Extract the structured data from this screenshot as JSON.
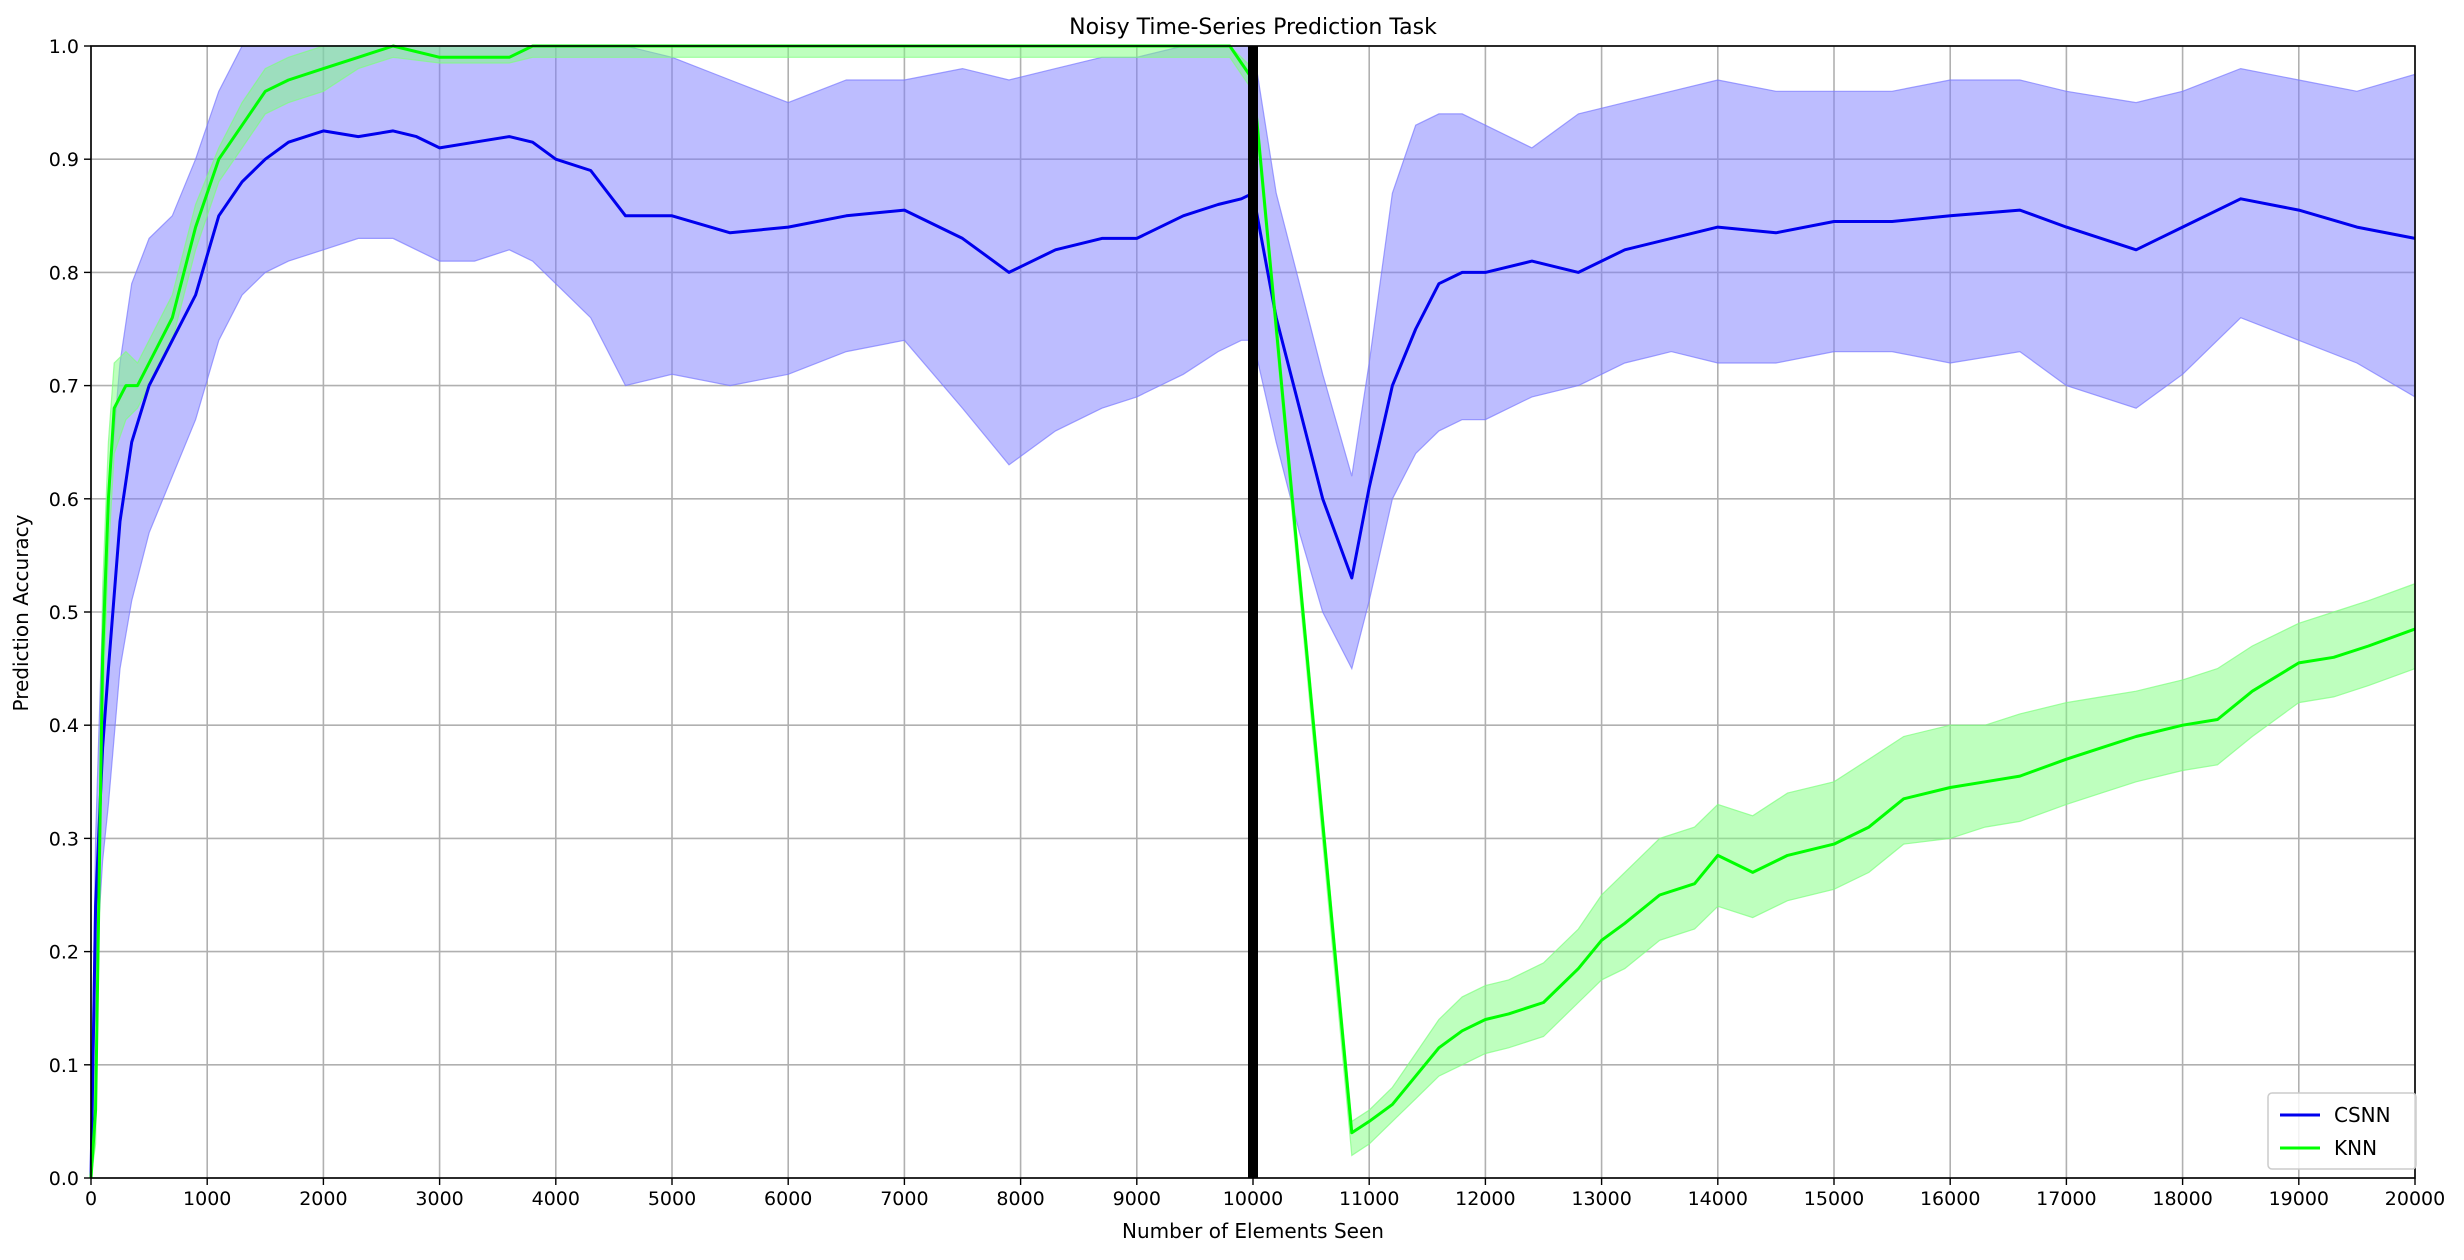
{
  "chart_data": {
    "type": "line",
    "title": "Noisy Time-Series Prediction Task",
    "xlabel": "Number of Elements Seen",
    "ylabel": "Prediction Accuracy",
    "xlim": [
      0,
      20000
    ],
    "ylim": [
      0,
      1.0
    ],
    "xticks": [
      0,
      1000,
      2000,
      3000,
      4000,
      5000,
      6000,
      7000,
      8000,
      9000,
      10000,
      11000,
      12000,
      13000,
      14000,
      15000,
      16000,
      17000,
      18000,
      19000,
      20000
    ],
    "yticks": [
      0.0,
      0.1,
      0.2,
      0.3,
      0.4,
      0.5,
      0.6,
      0.7,
      0.8,
      0.9,
      1.0
    ],
    "grid": true,
    "legend_position": "lower-right",
    "vline_x": 10000,
    "vline_color": "#000000",
    "series": [
      {
        "name": "CSNN",
        "color": "#0000ee",
        "band_color": "#7b7bff",
        "x": [
          0,
          40,
          100,
          150,
          250,
          350,
          500,
          700,
          900,
          1100,
          1300,
          1500,
          1700,
          2000,
          2300,
          2600,
          2800,
          3000,
          3300,
          3600,
          3800,
          4000,
          4300,
          4600,
          5000,
          5500,
          6000,
          6500,
          7000,
          7500,
          7900,
          8300,
          8700,
          9000,
          9400,
          9700,
          9900,
          10000,
          10200,
          10400,
          10600,
          10850,
          11000,
          11200,
          11400,
          11600,
          11800,
          12000,
          12400,
          12800,
          13200,
          13600,
          14000,
          14500,
          15000,
          15500,
          16000,
          16600,
          17000,
          17600,
          18000,
          18500,
          19000,
          19500,
          20000
        ],
        "y": [
          0.0,
          0.24,
          0.38,
          0.45,
          0.58,
          0.65,
          0.7,
          0.74,
          0.78,
          0.85,
          0.88,
          0.9,
          0.915,
          0.925,
          0.92,
          0.925,
          0.92,
          0.91,
          0.915,
          0.92,
          0.915,
          0.9,
          0.89,
          0.85,
          0.85,
          0.835,
          0.84,
          0.85,
          0.855,
          0.83,
          0.8,
          0.82,
          0.83,
          0.83,
          0.85,
          0.86,
          0.865,
          0.87,
          0.76,
          0.68,
          0.6,
          0.53,
          0.61,
          0.7,
          0.75,
          0.79,
          0.8,
          0.8,
          0.81,
          0.8,
          0.82,
          0.83,
          0.84,
          0.835,
          0.845,
          0.845,
          0.85,
          0.855,
          0.84,
          0.82,
          0.84,
          0.865,
          0.855,
          0.84,
          0.83
        ],
        "upper": [
          0.03,
          0.3,
          0.5,
          0.6,
          0.72,
          0.79,
          0.83,
          0.85,
          0.9,
          0.96,
          1.0,
          1.0,
          1.0,
          1.0,
          1.0,
          1.0,
          1.0,
          1.0,
          1.0,
          1.0,
          1.0,
          1.0,
          1.0,
          1.0,
          0.99,
          0.97,
          0.95,
          0.97,
          0.97,
          0.98,
          0.97,
          0.98,
          0.99,
          0.99,
          1.0,
          1.0,
          1.0,
          1.0,
          0.87,
          0.79,
          0.71,
          0.62,
          0.72,
          0.87,
          0.93,
          0.94,
          0.94,
          0.93,
          0.91,
          0.94,
          0.95,
          0.96,
          0.97,
          0.96,
          0.96,
          0.96,
          0.97,
          0.97,
          0.96,
          0.95,
          0.96,
          0.98,
          0.97,
          0.96,
          0.975
        ],
        "lower": [
          0.0,
          0.18,
          0.28,
          0.33,
          0.45,
          0.51,
          0.57,
          0.62,
          0.67,
          0.74,
          0.78,
          0.8,
          0.81,
          0.82,
          0.83,
          0.83,
          0.82,
          0.81,
          0.81,
          0.82,
          0.81,
          0.79,
          0.76,
          0.7,
          0.71,
          0.7,
          0.71,
          0.73,
          0.74,
          0.68,
          0.63,
          0.66,
          0.68,
          0.69,
          0.71,
          0.73,
          0.74,
          0.74,
          0.65,
          0.57,
          0.5,
          0.45,
          0.51,
          0.6,
          0.64,
          0.66,
          0.67,
          0.67,
          0.69,
          0.7,
          0.72,
          0.73,
          0.72,
          0.72,
          0.73,
          0.73,
          0.72,
          0.73,
          0.7,
          0.68,
          0.71,
          0.76,
          0.74,
          0.72,
          0.69
        ]
      },
      {
        "name": "KNN",
        "color": "#00ff00",
        "band_color": "#7dff7d",
        "x": [
          0,
          40,
          100,
          150,
          200,
          300,
          400,
          500,
          700,
          900,
          1100,
          1300,
          1500,
          1700,
          2000,
          2300,
          2600,
          3000,
          3300,
          3600,
          3800,
          4000,
          4500,
          5000,
          6000,
          7000,
          8000,
          9000,
          9500,
          9800,
          10000,
          10850,
          11000,
          11200,
          11400,
          11600,
          11800,
          12000,
          12200,
          12500,
          12800,
          13000,
          13200,
          13500,
          13800,
          14000,
          14300,
          14600,
          15000,
          15300,
          15600,
          16000,
          16300,
          16600,
          17000,
          17300,
          17600,
          18000,
          18300,
          18600,
          19000,
          19300,
          19600,
          20000
        ],
        "y": [
          0.0,
          0.06,
          0.46,
          0.6,
          0.68,
          0.7,
          0.7,
          0.72,
          0.76,
          0.84,
          0.9,
          0.93,
          0.96,
          0.97,
          0.98,
          0.99,
          1.0,
          0.99,
          0.99,
          0.99,
          1.0,
          1.0,
          1.0,
          1.0,
          1.0,
          1.0,
          1.0,
          1.0,
          1.0,
          1.0,
          0.97,
          0.04,
          0.05,
          0.065,
          0.09,
          0.115,
          0.13,
          0.14,
          0.145,
          0.155,
          0.185,
          0.21,
          0.225,
          0.25,
          0.26,
          0.285,
          0.27,
          0.285,
          0.295,
          0.31,
          0.335,
          0.345,
          0.35,
          0.355,
          0.37,
          0.38,
          0.39,
          0.4,
          0.405,
          0.43,
          0.455,
          0.46,
          0.47,
          0.485
        ],
        "upper": [
          0.01,
          0.1,
          0.52,
          0.65,
          0.72,
          0.73,
          0.72,
          0.74,
          0.78,
          0.86,
          0.91,
          0.95,
          0.98,
          0.99,
          1.0,
          1.0,
          1.0,
          1.0,
          1.0,
          1.0,
          1.0,
          1.0,
          1.0,
          1.0,
          1.0,
          1.0,
          1.0,
          1.0,
          1.0,
          1.0,
          0.98,
          0.05,
          0.06,
          0.08,
          0.11,
          0.14,
          0.16,
          0.17,
          0.175,
          0.19,
          0.22,
          0.25,
          0.27,
          0.3,
          0.31,
          0.33,
          0.32,
          0.34,
          0.35,
          0.37,
          0.39,
          0.4,
          0.4,
          0.41,
          0.42,
          0.425,
          0.43,
          0.44,
          0.45,
          0.47,
          0.49,
          0.5,
          0.51,
          0.525
        ],
        "lower": [
          0.0,
          0.03,
          0.41,
          0.55,
          0.64,
          0.67,
          0.68,
          0.7,
          0.74,
          0.82,
          0.88,
          0.91,
          0.94,
          0.95,
          0.96,
          0.98,
          0.99,
          0.985,
          0.985,
          0.985,
          0.99,
          0.99,
          0.99,
          0.99,
          0.99,
          0.99,
          0.99,
          0.99,
          0.99,
          0.99,
          0.96,
          0.02,
          0.03,
          0.05,
          0.07,
          0.09,
          0.1,
          0.11,
          0.115,
          0.125,
          0.155,
          0.175,
          0.185,
          0.21,
          0.22,
          0.24,
          0.23,
          0.245,
          0.255,
          0.27,
          0.295,
          0.3,
          0.31,
          0.315,
          0.33,
          0.34,
          0.35,
          0.36,
          0.365,
          0.39,
          0.42,
          0.425,
          0.435,
          0.45
        ]
      }
    ]
  }
}
